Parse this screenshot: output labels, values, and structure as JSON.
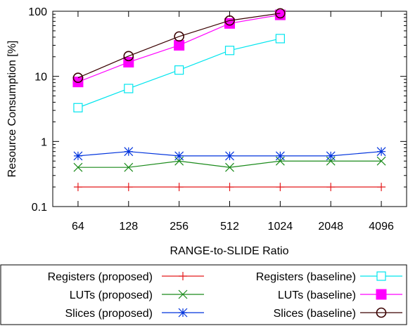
{
  "chart_data": {
    "type": "line",
    "title": "",
    "xlabel": "RANGE-to-SLIDE Ratio",
    "ylabel": "Resource Consumption [%]",
    "y_scale": "log",
    "ylim": [
      0.1,
      100
    ],
    "yticks": [
      "0.1",
      "1",
      "10",
      "100"
    ],
    "x": [
      "64",
      "128",
      "256",
      "512",
      "1024",
      "2048",
      "4096"
    ],
    "grid": false,
    "legend_position": "below",
    "series": [
      {
        "name": "Registers (proposed)",
        "color": "#e41a1c",
        "marker": "plus",
        "values": [
          0.2,
          0.2,
          0.2,
          0.2,
          0.2,
          0.2,
          0.2
        ]
      },
      {
        "name": "Registers (baseline)",
        "color": "#00e5ee",
        "marker": "open-square",
        "values": [
          3.3,
          6.5,
          12.5,
          25,
          38,
          null,
          null
        ]
      },
      {
        "name": "LUTs (proposed)",
        "color": "#1a8a1a",
        "marker": "cross",
        "values": [
          0.4,
          0.4,
          0.5,
          0.4,
          0.5,
          0.5,
          0.5
        ]
      },
      {
        "name": "LUTs (baseline)",
        "color": "#ff00ff",
        "marker": "filled-square",
        "values": [
          8.2,
          16.5,
          30,
          65,
          88,
          null,
          null
        ]
      },
      {
        "name": "Slices (proposed)",
        "color": "#0033dd",
        "marker": "star",
        "values": [
          0.6,
          0.7,
          0.6,
          0.6,
          0.6,
          0.6,
          0.7
        ]
      },
      {
        "name": "Slices (baseline)",
        "color": "#3a0000",
        "marker": "open-circle",
        "values": [
          9.5,
          20.5,
          41,
          72,
          93,
          null,
          null
        ]
      }
    ]
  }
}
